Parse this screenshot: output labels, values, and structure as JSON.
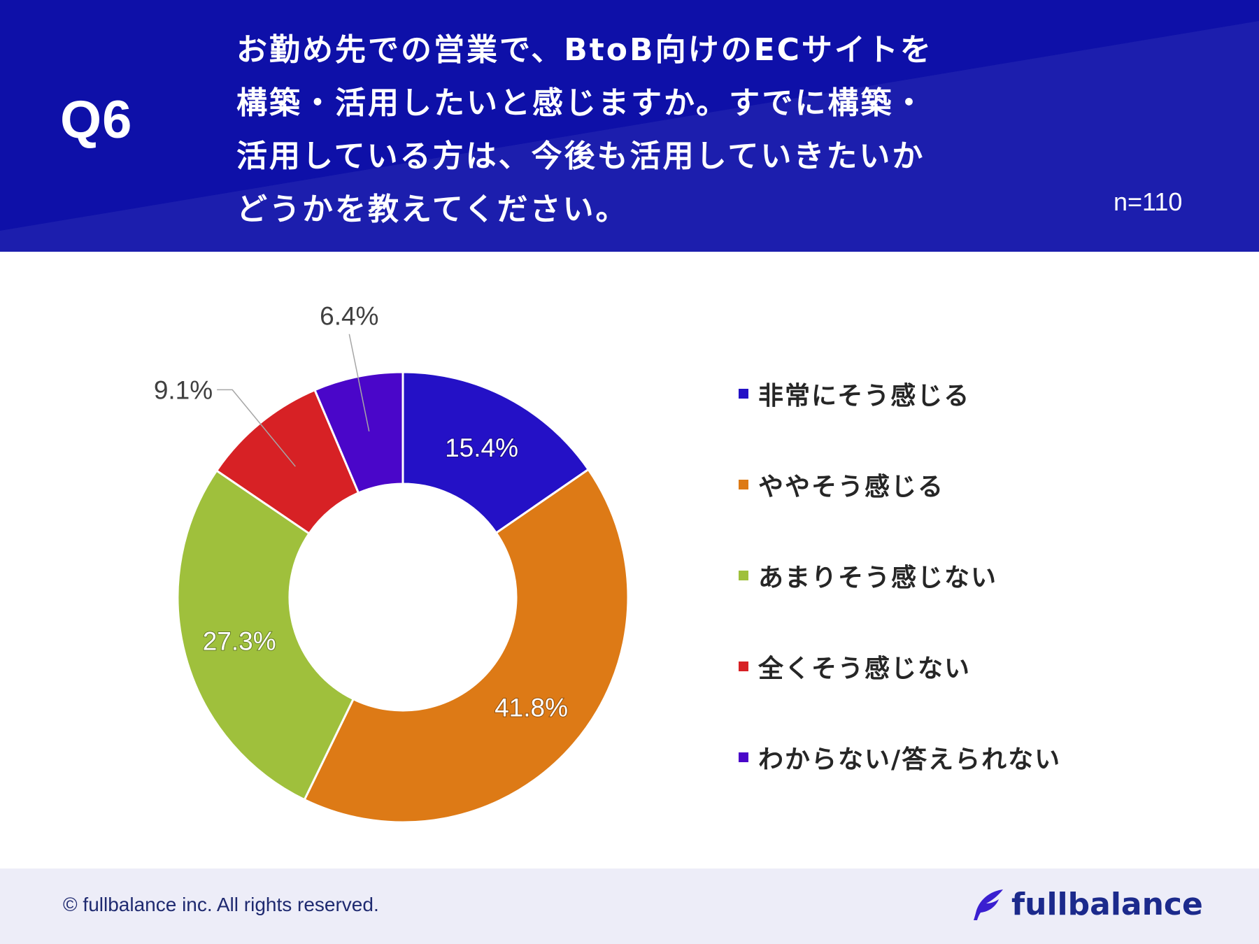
{
  "header": {
    "q_label": "Q6",
    "question_lines": [
      "お勤め先での営業で、BtoB向けのECサイトを",
      "構築・活用したいと感じますか。すでに構築・",
      "活用している方は、今後も活用していきたいか",
      "どうかを教えてください。"
    ],
    "sample_size": "n=110"
  },
  "chart_data": {
    "type": "pie",
    "donut": true,
    "start": "12 o'clock",
    "direction": "clockwise",
    "categories": [
      "非常にそう感じる",
      "ややそう感じる",
      "あまりそう感じない",
      "全くそう感じない",
      "わからない/答えられない"
    ],
    "values": [
      15.4,
      41.8,
      27.3,
      9.1,
      6.4
    ],
    "labels": [
      "15.4%",
      "41.8%",
      "27.3%",
      "9.1%",
      "6.4%"
    ],
    "colors": [
      "#2411c6",
      "#dd7a16",
      "#9fc03c",
      "#d72125",
      "#4a06c9"
    ],
    "unit": "%",
    "legend_position": "right"
  },
  "footer": {
    "copyright": "© fullbalance inc. All rights reserved.",
    "brand": "fullbalance"
  },
  "theme": {
    "header_bg": "#0e10a8",
    "brand_color": "#1c2a8c"
  }
}
